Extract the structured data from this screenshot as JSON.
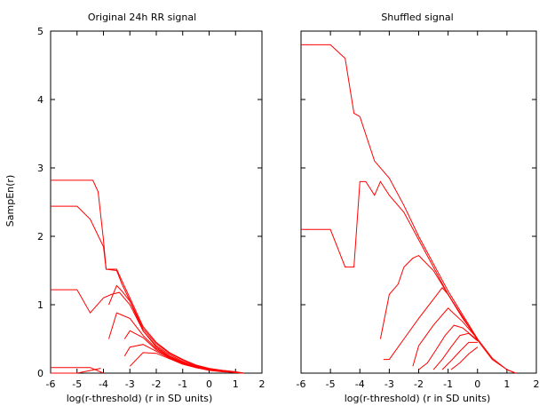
{
  "chart_data": [
    {
      "type": "line",
      "title": "Original 24h RR signal",
      "xlabel": "log(r-threshold) (r in SD units)",
      "ylabel": "SampEn(r)",
      "xlim": [
        -6,
        2
      ],
      "ylim": [
        0,
        5
      ],
      "xticks": [
        "-6",
        "-5",
        "-4",
        "-3",
        "-2",
        "-1",
        "0",
        "1",
        "2"
      ],
      "yticks": [
        "0",
        "1",
        "2",
        "3",
        "4",
        "5"
      ],
      "grid": false,
      "line_color": "#ff0000",
      "series": [
        {
          "x": [
            -6,
            -4.4,
            -4.2,
            -4.0,
            -3.9,
            -3.5,
            -3.3,
            -3.0,
            -2.5,
            -2.0,
            -1.5,
            -1.0,
            -0.5,
            0.0,
            0.5,
            1.0,
            1.3
          ],
          "y": [
            2.82,
            2.82,
            2.65,
            1.95,
            1.52,
            1.52,
            1.35,
            1.1,
            0.68,
            0.45,
            0.3,
            0.2,
            0.12,
            0.07,
            0.04,
            0.02,
            0.0
          ]
        },
        {
          "x": [
            -6,
            -5.0,
            -4.5,
            -4.0,
            -3.9,
            -3.5,
            -3.3,
            -3.0,
            -2.5,
            -2.0,
            -1.5,
            -1.0,
            -0.5,
            0.0,
            0.5,
            1.0,
            1.3
          ],
          "y": [
            2.44,
            2.44,
            2.25,
            1.85,
            1.52,
            1.5,
            1.3,
            1.06,
            0.65,
            0.43,
            0.29,
            0.19,
            0.11,
            0.06,
            0.04,
            0.02,
            0.0
          ]
        },
        {
          "x": [
            -6,
            -5.0,
            -4.5,
            -4.0,
            -3.7,
            -3.4,
            -3.0,
            -2.5,
            -2.0,
            -1.5,
            -1.0,
            -0.5,
            0.0,
            0.5,
            1.0,
            1.3
          ],
          "y": [
            1.22,
            1.22,
            0.88,
            1.1,
            1.15,
            1.18,
            1.0,
            0.62,
            0.4,
            0.27,
            0.17,
            0.1,
            0.05,
            0.03,
            0.01,
            0.0
          ]
        },
        {
          "x": [
            -3.8,
            -3.5,
            -3.3,
            -3.0,
            -2.5,
            -2.0,
            -1.5,
            -1.0,
            -0.5,
            0.0,
            0.5,
            1.0,
            1.3
          ],
          "y": [
            1.0,
            1.28,
            1.2,
            1.05,
            0.62,
            0.38,
            0.25,
            0.16,
            0.09,
            0.05,
            0.03,
            0.01,
            0.0
          ]
        },
        {
          "x": [
            -3.8,
            -3.5,
            -3.3,
            -3.0,
            -2.5,
            -2.0,
            -1.5,
            -1.0,
            -0.5,
            0.0,
            0.5,
            1.0,
            1.3
          ],
          "y": [
            0.5,
            0.88,
            0.85,
            0.8,
            0.55,
            0.36,
            0.24,
            0.15,
            0.09,
            0.05,
            0.03,
            0.01,
            0.0
          ]
        },
        {
          "x": [
            -3.2,
            -3.0,
            -2.5,
            -2.0,
            -1.5,
            -1.0,
            -0.5,
            0.0,
            0.5,
            1.0,
            1.3
          ],
          "y": [
            0.5,
            0.62,
            0.52,
            0.34,
            0.23,
            0.14,
            0.08,
            0.05,
            0.03,
            0.01,
            0.0
          ]
        },
        {
          "x": [
            -3.2,
            -3.0,
            -2.5,
            -2.0,
            -1.5,
            -1.0,
            -0.5,
            0.0,
            0.5,
            1.0,
            1.3
          ],
          "y": [
            0.25,
            0.38,
            0.42,
            0.32,
            0.22,
            0.14,
            0.08,
            0.05,
            0.03,
            0.01,
            0.0
          ]
        },
        {
          "x": [
            -3.0,
            -2.5,
            -2.0,
            -1.5,
            -1.0,
            -0.5,
            0.0,
            0.5,
            1.0,
            1.3
          ],
          "y": [
            0.1,
            0.3,
            0.29,
            0.21,
            0.13,
            0.08,
            0.04,
            0.02,
            0.01,
            0.0
          ]
        },
        {
          "x": [
            -6,
            -4.5,
            -4.0
          ],
          "y": [
            0.08,
            0.08,
            0.0
          ]
        },
        {
          "x": [
            -6,
            -5.0,
            -4.1
          ],
          "y": [
            0.0,
            0.0,
            0.07
          ]
        }
      ]
    },
    {
      "type": "line",
      "title": "Shuffled signal",
      "xlabel": "log(r-threshold) (r in SD units)",
      "ylabel": "",
      "xlim": [
        -6,
        2
      ],
      "ylim": [
        0,
        5
      ],
      "xticks": [
        "-6",
        "-5",
        "-4",
        "-3",
        "-2",
        "-1",
        "0",
        "1",
        "2"
      ],
      "grid": false,
      "line_color": "#ff0000",
      "series": [
        {
          "x": [
            -6,
            -5.0,
            -4.5,
            -4.2,
            -4.0,
            -3.5,
            -3.0,
            -2.5,
            -2.0,
            -1.5,
            -1.0,
            -0.5,
            0.0,
            0.5,
            1.0,
            1.3
          ],
          "y": [
            4.8,
            4.8,
            4.6,
            3.8,
            3.75,
            3.1,
            2.85,
            2.45,
            2.0,
            1.6,
            1.2,
            0.85,
            0.5,
            0.22,
            0.05,
            0.0
          ]
        },
        {
          "x": [
            -6,
            -5.0,
            -4.5,
            -4.2,
            -4.0,
            -3.8,
            -3.5,
            -3.3,
            -3.0,
            -2.5,
            -2.0,
            -1.5,
            -1.0,
            -0.5,
            0.0,
            0.5,
            1.0,
            1.3
          ],
          "y": [
            2.1,
            2.1,
            1.55,
            1.55,
            2.8,
            2.8,
            2.6,
            2.8,
            2.6,
            2.35,
            1.95,
            1.55,
            1.15,
            0.82,
            0.48,
            0.2,
            0.05,
            0.0
          ]
        },
        {
          "x": [
            -3.3,
            -3.0,
            -2.7,
            -2.5,
            -2.2,
            -2.0,
            -1.5,
            -1.0,
            -0.5,
            0.0
          ],
          "y": [
            0.5,
            1.15,
            1.3,
            1.55,
            1.68,
            1.72,
            1.5,
            1.15,
            0.8,
            0.5
          ]
        },
        {
          "x": [
            -3.2,
            -3.0,
            -2.5,
            -2.0,
            -1.5,
            -1.2,
            -1.0,
            -0.5,
            0.0
          ],
          "y": [
            0.2,
            0.2,
            0.5,
            0.8,
            1.08,
            1.25,
            1.15,
            0.8,
            0.5
          ]
        },
        {
          "x": [
            -2.2,
            -2.0,
            -1.5,
            -1.0,
            -0.5,
            0.0
          ],
          "y": [
            0.1,
            0.4,
            0.7,
            0.95,
            0.75,
            0.5
          ]
        },
        {
          "x": [
            -2.0,
            -1.7,
            -1.4,
            -1.1,
            -0.8,
            -0.5,
            0.0
          ],
          "y": [
            0.05,
            0.15,
            0.35,
            0.55,
            0.7,
            0.66,
            0.48
          ]
        },
        {
          "x": [
            -1.5,
            -1.2,
            -0.9,
            -0.6,
            -0.3,
            0.0
          ],
          "y": [
            0.05,
            0.2,
            0.38,
            0.55,
            0.58,
            0.47
          ]
        },
        {
          "x": [
            -1.2,
            -0.9,
            -0.6,
            -0.3,
            0.0
          ],
          "y": [
            0.05,
            0.18,
            0.32,
            0.45,
            0.45
          ]
        },
        {
          "x": [
            -0.9,
            -0.6,
            -0.3,
            0.0
          ],
          "y": [
            0.05,
            0.15,
            0.28,
            0.38
          ]
        }
      ]
    }
  ]
}
